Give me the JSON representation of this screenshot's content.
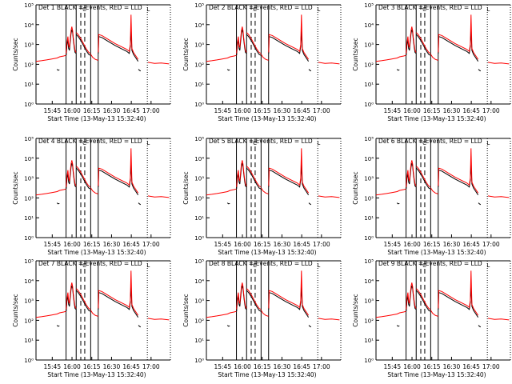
{
  "chart_data": {
    "type": "line",
    "title_template": "Det {n}  BLACK = Events,  RED = LLD",
    "panels": [
      1,
      2,
      3,
      4,
      5,
      6,
      7,
      8,
      9
    ],
    "xlabel": "Start Time (13-May-13 15:32:40)",
    "ylabel": "Counts/sec",
    "y_scale": "log",
    "ylim_exponent": [
      0,
      5
    ],
    "y_tick_labels": [
      "10⁰",
      "10¹",
      "10²",
      "10³",
      "10⁴",
      "10⁵"
    ],
    "xlim_minutes_after_start": [
      0,
      102
    ],
    "x_tick_labels": [
      "15:45",
      "16:00",
      "16:15",
      "16:30",
      "16:45",
      "17:00"
    ],
    "x_tick_minutes": [
      12.33,
      27.33,
      42.33,
      57.33,
      72.33,
      87.33
    ],
    "vertical_lines": {
      "solid_minutes": [
        22.8,
        30.5,
        41.5,
        47.2
      ],
      "dashed_minutes": [
        34.0,
        37.0
      ],
      "dotted_minutes": [
        84.5
      ],
      "axis_dotted_minutes": [
        102
      ]
    },
    "marker_label": "C",
    "marker_minute": 36.8,
    "corner_marker_label": "L",
    "corner_marker_minute": 84.0,
    "series": [
      {
        "name": "Events",
        "color": "#000000",
        "segments": [
          {
            "x": [
              15.9,
              16.8,
              17.8
            ],
            "y_exponent": [
              1.75,
              1.7,
              1.72
            ]
          },
          {
            "x": [
              22.9,
              23.5,
              24.2,
              24.8,
              25.4,
              26.0,
              26.6,
              27.2,
              27.8,
              28.3,
              29.0,
              29.6,
              30.4
            ],
            "y_exponent": [
              2.45,
              2.95,
              3.25,
              2.8,
              2.7,
              3.15,
              3.55,
              3.75,
              3.6,
              3.25,
              2.85,
              2.6,
              2.55
            ]
          },
          {
            "x": [
              30.6,
              32.0,
              34.0,
              36.0,
              38.0,
              40.0,
              41.4
            ],
            "y_exponent": [
              3.5,
              3.4,
              3.2,
              2.95,
              2.7,
              2.5,
              2.45
            ]
          },
          {
            "x": [
              47.3,
              47.6,
              50.0,
              55.0,
              60.0,
              65.0,
              69.0,
              70.8,
              71.6,
              72.1,
              72.8,
              74.0,
              76.0,
              77.5
            ],
            "y_exponent": [
              2.55,
              3.4,
              3.35,
              3.15,
              2.95,
              2.78,
              2.65,
              2.55,
              2.9,
              3.7,
              2.7,
              2.5,
              2.3,
              2.15
            ]
          },
          {
            "x": [
              77.7,
              78.5,
              79.4
            ],
            "y_exponent": [
              1.75,
              1.7,
              1.66
            ]
          }
        ]
      },
      {
        "name": "LLD",
        "color": "#ff0000",
        "segments": [
          {
            "x": [
              0.0,
              4.0,
              8.0,
              12.0,
              16.0,
              18.0,
              21.0,
              22.7
            ],
            "y_exponent": [
              2.15,
              2.18,
              2.22,
              2.27,
              2.32,
              2.38,
              2.42,
              2.45
            ]
          },
          {
            "x": [
              22.9,
              23.5,
              24.2,
              24.8,
              25.4,
              26.0,
              26.6,
              27.2,
              27.8,
              28.3,
              29.0,
              29.6,
              30.4
            ],
            "y_exponent": [
              2.55,
              3.1,
              3.4,
              2.95,
              2.85,
              3.3,
              3.7,
              3.9,
              3.7,
              3.35,
              2.95,
              2.7,
              2.6
            ]
          },
          {
            "x": [
              30.6,
              32.0,
              34.0,
              36.0,
              38.0,
              40.0,
              41.4
            ],
            "y_exponent": [
              3.6,
              3.5,
              3.3,
              3.05,
              2.8,
              2.6,
              2.55
            ]
          },
          {
            "x": [
              41.6,
              43.0,
              45.0,
              47.1
            ],
            "y_exponent": [
              2.5,
              2.35,
              2.25,
              2.2
            ]
          },
          {
            "x": [
              47.3,
              47.6,
              50.0,
              55.0,
              60.0,
              65.0,
              69.0,
              70.8,
              71.6,
              72.1,
              72.8,
              74.0,
              76.0,
              77.5
            ],
            "y_exponent": [
              2.6,
              3.5,
              3.45,
              3.25,
              3.05,
              2.88,
              2.75,
              2.65,
              3.0,
              4.5,
              2.8,
              2.6,
              2.4,
              2.25
            ]
          },
          {
            "x": [
              85.0,
              90.0,
              95.0,
              101.0
            ],
            "y_exponent": [
              2.1,
              2.05,
              2.07,
              2.02
            ]
          }
        ]
      }
    ]
  }
}
